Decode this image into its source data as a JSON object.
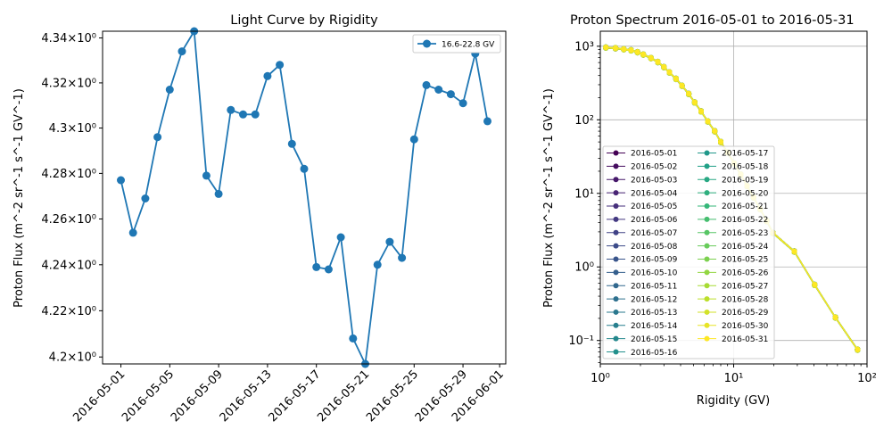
{
  "chart_data": [
    {
      "type": "line",
      "title": "Light Curve by Rigidity",
      "xlabel": "",
      "ylabel": "Proton Flux (m^-2 sr^-1 s^-1 GV^-1)",
      "yscale": "log",
      "ylim": [
        4.197,
        4.343
      ],
      "ytick_labels": [
        "4.2×10⁰",
        "4.22×10⁰",
        "4.24×10⁰",
        "4.26×10⁰",
        "4.28×10⁰",
        "4.3×10⁰",
        "4.32×10⁰",
        "4.34×10⁰"
      ],
      "ytick_values": [
        4.2,
        4.22,
        4.24,
        4.26,
        4.28,
        4.3,
        4.32,
        4.34
      ],
      "xlim": [
        "2016-04-29T12:00",
        "2016-06-01T12:00"
      ],
      "xtick_labels": [
        "2016-05-01",
        "2016-05-05",
        "2016-05-09",
        "2016-05-13",
        "2016-05-17",
        "2016-05-21",
        "2016-05-25",
        "2016-05-29",
        "2016-06-01"
      ],
      "grid": false,
      "legend": "top-right",
      "color": "#1f77b4",
      "x": [
        "2016-05-01",
        "2016-05-02",
        "2016-05-03",
        "2016-05-04",
        "2016-05-05",
        "2016-05-06",
        "2016-05-07",
        "2016-05-08",
        "2016-05-09",
        "2016-05-10",
        "2016-05-11",
        "2016-05-12",
        "2016-05-13",
        "2016-05-14",
        "2016-05-15",
        "2016-05-16",
        "2016-05-17",
        "2016-05-18",
        "2016-05-19",
        "2016-05-20",
        "2016-05-21",
        "2016-05-22",
        "2016-05-23",
        "2016-05-24",
        "2016-05-25",
        "2016-05-26",
        "2016-05-27",
        "2016-05-28",
        "2016-05-29",
        "2016-05-30",
        "2016-05-31"
      ],
      "series": [
        {
          "name": "16.6-22.8 GV",
          "values": [
            4.277,
            4.254,
            4.269,
            4.296,
            4.317,
            4.334,
            4.343,
            4.279,
            4.271,
            4.308,
            4.306,
            4.306,
            4.323,
            4.328,
            4.293,
            4.282,
            4.239,
            4.238,
            4.252,
            4.208,
            4.197,
            4.24,
            4.25,
            4.243,
            4.295,
            4.319,
            4.317,
            4.315,
            4.311,
            4.333,
            4.303
          ]
        }
      ]
    },
    {
      "type": "line",
      "title": "Proton Spectrum 2016-05-01 to 2016-05-31",
      "xlabel": "Rigidity (GV)",
      "ylabel": "Proton Flux (m^-2 sr^-1 s^-1 GV^-1)",
      "xscale": "log",
      "yscale": "log",
      "xlim": [
        1,
        100
      ],
      "ylim": [
        0.048,
        1600
      ],
      "xtick_labels": [
        "10⁰",
        "10¹",
        "10²"
      ],
      "ytick_labels": [
        "10⁻¹",
        "10⁰",
        "10¹",
        "10²",
        "10³"
      ],
      "grid": true,
      "legend": "center-left",
      "colormap": [
        "#440154",
        "#482878",
        "#3e4989",
        "#31688e",
        "#26828e",
        "#1f9e89",
        "#35b779",
        "#6ece58",
        "#b5de2b",
        "#fde725"
      ],
      "rigidity": [
        1.1,
        1.3,
        1.5,
        1.7,
        1.9,
        2.1,
        2.4,
        2.7,
        3.0,
        3.3,
        3.7,
        4.1,
        4.6,
        5.1,
        5.7,
        6.4,
        7.2,
        8.0,
        9.0,
        10.1,
        11.3,
        12.6,
        14.1,
        15.8,
        17.7,
        19.7,
        28.5,
        40.5,
        58.0,
        85.0
      ],
      "flux": [
        960,
        940,
        910,
        880,
        830,
        770,
        690,
        610,
        520,
        440,
        360,
        290,
        225,
        172,
        130,
        95,
        70,
        50,
        36,
        25.5,
        18,
        12.6,
        8.8,
        6.1,
        4.2,
        2.9,
        1.62,
        0.57,
        0.205,
        0.075
      ],
      "series_names": [
        "2016-05-01",
        "2016-05-02",
        "2016-05-03",
        "2016-05-04",
        "2016-05-05",
        "2016-05-06",
        "2016-05-07",
        "2016-05-08",
        "2016-05-09",
        "2016-05-10",
        "2016-05-11",
        "2016-05-12",
        "2016-05-13",
        "2016-05-14",
        "2016-05-15",
        "2016-05-16",
        "2016-05-17",
        "2016-05-18",
        "2016-05-19",
        "2016-05-20",
        "2016-05-21",
        "2016-05-22",
        "2016-05-23",
        "2016-05-24",
        "2016-05-25",
        "2016-05-26",
        "2016-05-27",
        "2016-05-28",
        "2016-05-29",
        "2016-05-30",
        "2016-05-31"
      ]
    }
  ]
}
